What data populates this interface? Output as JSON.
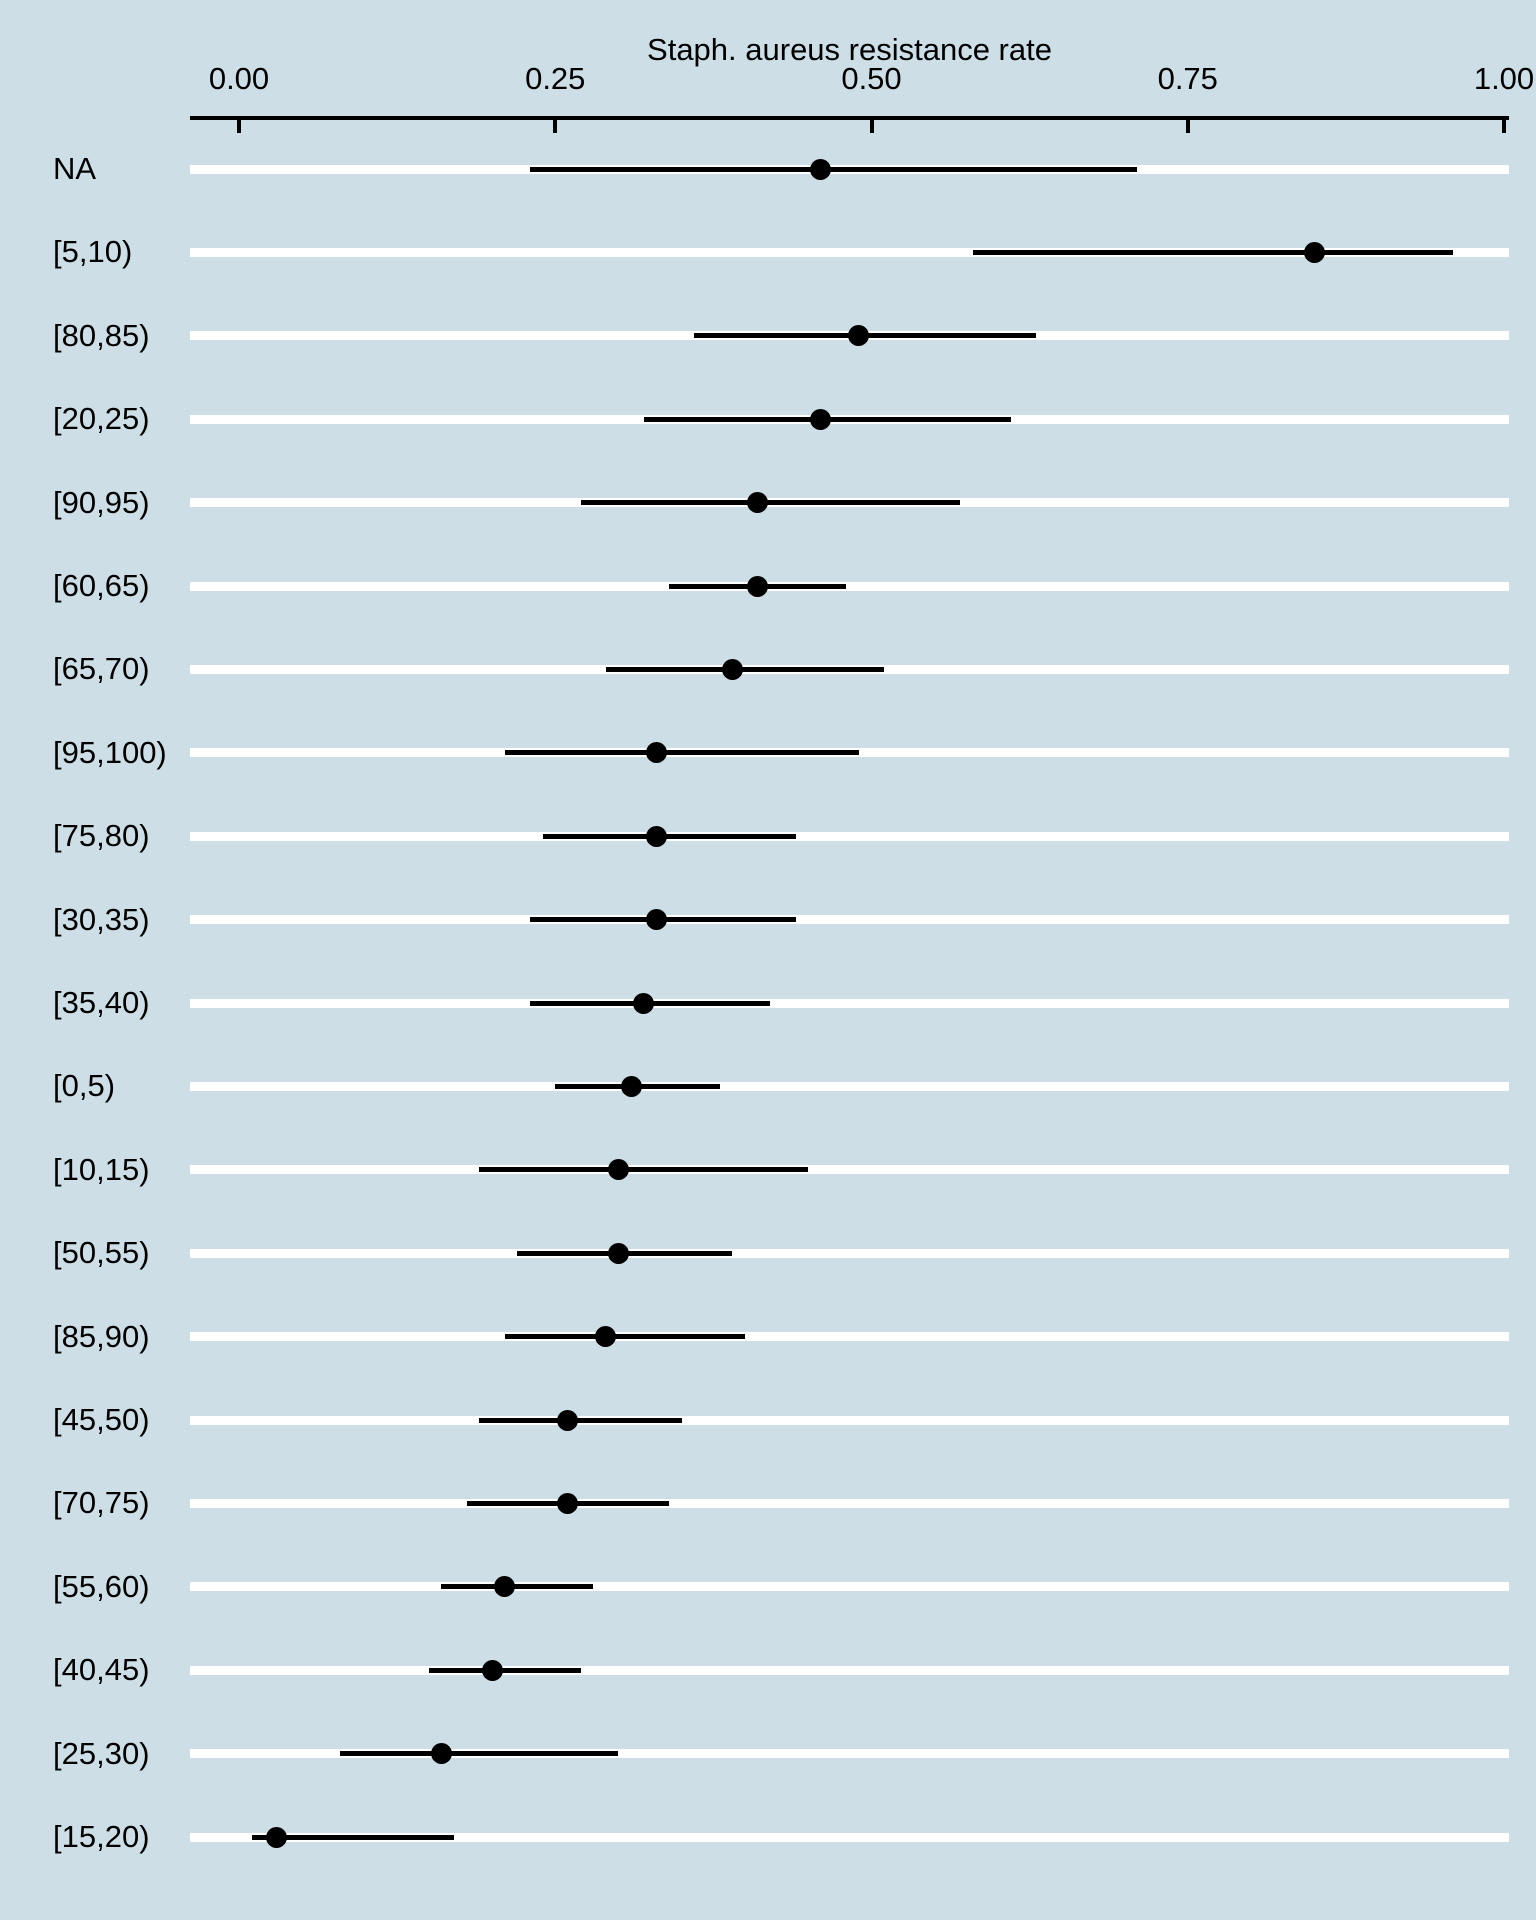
{
  "chart_data": {
    "type": "scatter",
    "subtype": "forest-pointrange",
    "title": "Staph. aureus resistance rate",
    "xlabel": "Staph. aureus resistance rate",
    "ylabel": "",
    "xlim": [
      0.0,
      1.0
    ],
    "x_tick_values": [
      0.0,
      0.25,
      0.5,
      0.75,
      1.0
    ],
    "x_tick_labels": [
      "0.00",
      "0.25",
      "0.50",
      "0.75",
      "1.00"
    ],
    "grid": "white horizontal stripe per category row",
    "legend_position": "none",
    "points": [
      {
        "category": "NA",
        "estimate": 0.46,
        "ci_low": 0.23,
        "ci_high": 0.71
      },
      {
        "category": "[5,10)",
        "estimate": 0.85,
        "ci_low": 0.58,
        "ci_high": 0.96
      },
      {
        "category": "[80,85)",
        "estimate": 0.49,
        "ci_low": 0.36,
        "ci_high": 0.63
      },
      {
        "category": "[20,25)",
        "estimate": 0.46,
        "ci_low": 0.32,
        "ci_high": 0.61
      },
      {
        "category": "[90,95)",
        "estimate": 0.41,
        "ci_low": 0.27,
        "ci_high": 0.57
      },
      {
        "category": "[60,65)",
        "estimate": 0.41,
        "ci_low": 0.34,
        "ci_high": 0.48
      },
      {
        "category": "[65,70)",
        "estimate": 0.39,
        "ci_low": 0.29,
        "ci_high": 0.51
      },
      {
        "category": "[95,100)",
        "estimate": 0.33,
        "ci_low": 0.21,
        "ci_high": 0.49
      },
      {
        "category": "[75,80)",
        "estimate": 0.33,
        "ci_low": 0.24,
        "ci_high": 0.44
      },
      {
        "category": "[30,35)",
        "estimate": 0.33,
        "ci_low": 0.23,
        "ci_high": 0.44
      },
      {
        "category": "[35,40)",
        "estimate": 0.32,
        "ci_low": 0.23,
        "ci_high": 0.42
      },
      {
        "category": "[0,5)",
        "estimate": 0.31,
        "ci_low": 0.25,
        "ci_high": 0.38
      },
      {
        "category": "[10,15)",
        "estimate": 0.3,
        "ci_low": 0.19,
        "ci_high": 0.45
      },
      {
        "category": "[50,55)",
        "estimate": 0.3,
        "ci_low": 0.22,
        "ci_high": 0.39
      },
      {
        "category": "[85,90)",
        "estimate": 0.29,
        "ci_low": 0.21,
        "ci_high": 0.4
      },
      {
        "category": "[45,50)",
        "estimate": 0.26,
        "ci_low": 0.19,
        "ci_high": 0.35
      },
      {
        "category": "[70,75)",
        "estimate": 0.26,
        "ci_low": 0.18,
        "ci_high": 0.34
      },
      {
        "category": "[55,60)",
        "estimate": 0.21,
        "ci_low": 0.16,
        "ci_high": 0.28
      },
      {
        "category": "[40,45)",
        "estimate": 0.2,
        "ci_low": 0.15,
        "ci_high": 0.27
      },
      {
        "category": "[25,30)",
        "estimate": 0.16,
        "ci_low": 0.08,
        "ci_high": 0.3
      },
      {
        "category": "[15,20)",
        "estimate": 0.03,
        "ci_low": 0.01,
        "ci_high": 0.17
      }
    ],
    "colors": {
      "background": "#cddee6",
      "stripe": "#ffffff",
      "point": "#000000",
      "interval": "#000000",
      "axis": "#000000",
      "text": "#000000"
    }
  }
}
